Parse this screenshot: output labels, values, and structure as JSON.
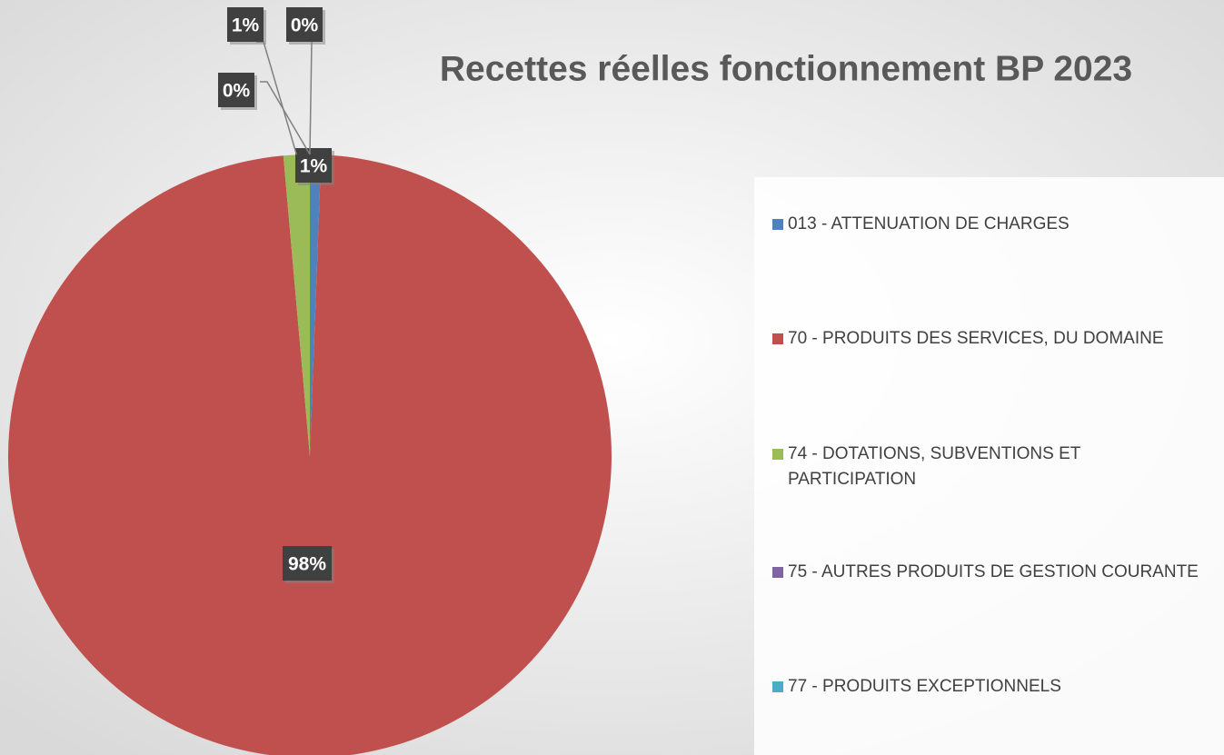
{
  "chart_data": {
    "type": "pie",
    "title": "Recettes réelles fonctionnement BP 2023",
    "categories": [
      "013 - ATTENUATION DE CHARGES",
      "70 - PRODUITS DES SERVICES, DU DOMAINE",
      "74 - DOTATIONS, SUBVENTIONS ET PARTICIPATION",
      "75 - AUTRES PRODUITS DE GESTION COURANTE",
      "77 - PRODUITS EXCEPTIONNELS"
    ],
    "values": [
      0.6,
      98.0,
      1.4,
      0,
      0
    ],
    "value_labels": [
      "1%",
      "98%",
      "1%",
      "0%",
      "0%"
    ],
    "colors": [
      "#4f81bd",
      "#c0504d",
      "#9bbb59",
      "#8064a2",
      "#4bacc6"
    ],
    "legend": "right"
  }
}
